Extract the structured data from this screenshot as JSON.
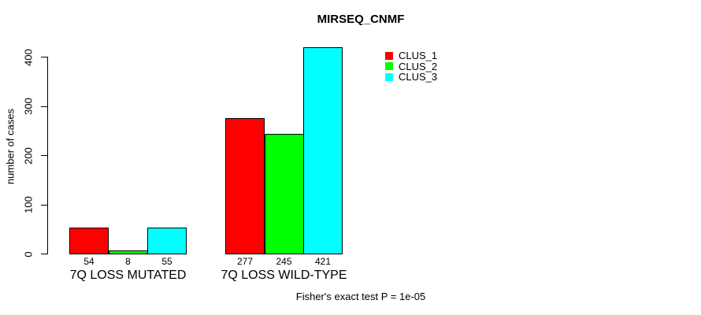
{
  "chart_data": {
    "type": "bar",
    "title": "MIRSEQ_CNMF",
    "xlabel": "",
    "ylabel": "number of cases",
    "categories": [
      "7Q LOSS MUTATED",
      "7Q LOSS WILD-TYPE"
    ],
    "series": [
      {
        "name": "CLUS_1",
        "color": "#ff0000",
        "values": [
          54,
          277
        ]
      },
      {
        "name": "CLUS_2",
        "color": "#00ff00",
        "values": [
          8,
          245
        ]
      },
      {
        "name": "CLUS_3",
        "color": "#00ffff",
        "values": [
          55,
          421
        ]
      }
    ],
    "bar_value_labels": [
      [
        "54",
        "8",
        "55"
      ],
      [
        "277",
        "245",
        "421"
      ]
    ],
    "ylim": [
      0,
      400
    ],
    "yticks": [
      0,
      100,
      200,
      300,
      400
    ],
    "grid": false,
    "legend_position": "top-right",
    "legend_entries": [
      "CLUS_1",
      "CLUS_2",
      "CLUS_3"
    ],
    "annotation": "Fisher's exact test P = 1e-05"
  },
  "colors": {
    "background": "#ffffff",
    "axis": "#000000",
    "text": "#000000"
  }
}
